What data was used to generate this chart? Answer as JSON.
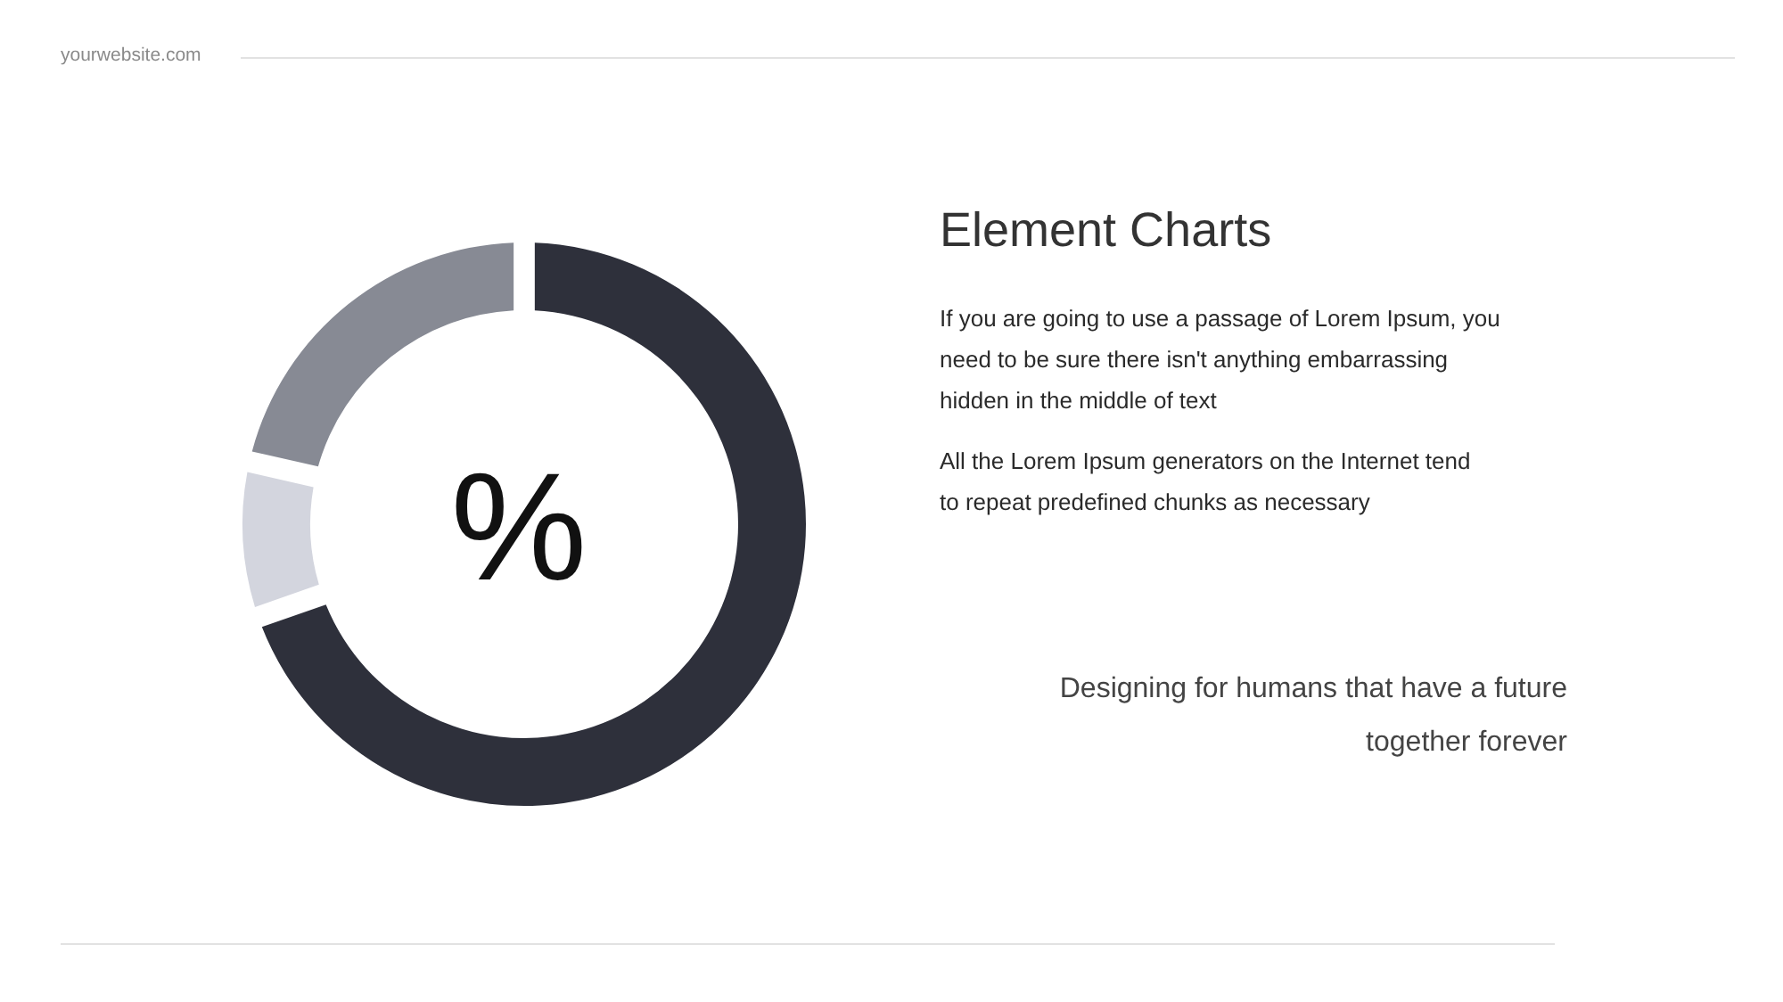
{
  "chart_data": {
    "type": "donut",
    "title": "Element Charts",
    "categories": [
      null,
      null,
      null
    ],
    "values": [
      71,
      8,
      21
    ],
    "colors": [
      "#2e303b",
      "#d3d5de",
      "#878a94"
    ],
    "annotations": [
      "%",
      "If you are going to use a passage of Lorem Ipsum, you need to be sure there isn't anything embarrassing hidden in the middle of text",
      "All the Lorem Ipsum generators on the Internet tend to repeat predefined chunks as necessary",
      "Designing for humans that have a future together forever",
      "yourwebsite.com"
    ]
  }
}
